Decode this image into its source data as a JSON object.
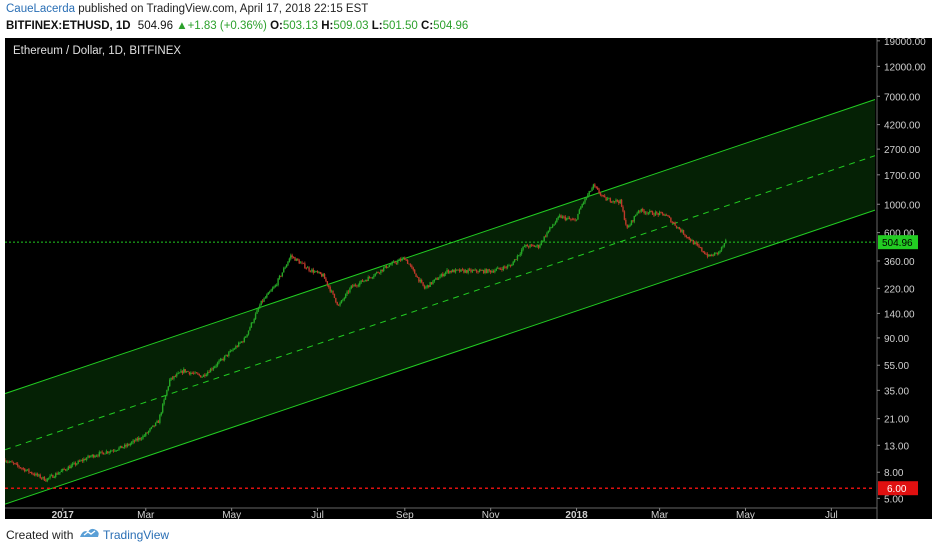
{
  "header": {
    "author": "CaueLacerda",
    "published": "published on TradingView.com, April 17, 2018 22:15 EST",
    "symbol": "BITFINEX:ETHUSD, 1D",
    "last": "504.96",
    "change": "+1.83 (+0.36%)",
    "open_label": "O:",
    "open": "503.13",
    "high_label": "H:",
    "high": "509.03",
    "low_label": "L:",
    "low": "501.50",
    "close_label": "C:",
    "close": "504.96"
  },
  "footer": {
    "created_with": "Created with",
    "brand": "TradingView"
  },
  "colors": {
    "background": "#000000",
    "channel": "#22cc22",
    "up": "#26a626",
    "down": "#c0392b",
    "price_line": "#22cc22",
    "support": "#e01010",
    "axis_text": "#d0d0d0"
  },
  "chart_data": {
    "type": "candlestick",
    "title": "Ethereum / Dollar, 1D, BITFINEX",
    "y_scale": "log",
    "ylim": [
      4.2,
      20000
    ],
    "y_ticks": [
      5.0,
      8.0,
      13.0,
      21.0,
      35.0,
      55.0,
      90.0,
      140.0,
      220.0,
      360.0,
      600.0,
      1000.0,
      1700.0,
      2700.0,
      4200.0,
      7000.0,
      12000.0,
      19000.0
    ],
    "x_ticks": [
      "2017",
      "Mar",
      "May",
      "Jul",
      "Sep",
      "Nov",
      "2018",
      "Mar",
      "May",
      "Jul"
    ],
    "x_range": [
      "2016-11-21",
      "2018-08-01"
    ],
    "last_price": {
      "value": 504.96,
      "label": "504.96"
    },
    "support_line": {
      "value": 6.0,
      "label": "6.00"
    },
    "channel": {
      "upper": [
        {
          "date": "2016-11-21",
          "value": 33
        },
        {
          "date": "2018-08-01",
          "value": 6600
        }
      ],
      "mid": [
        {
          "date": "2016-11-21",
          "value": 12
        },
        {
          "date": "2018-08-01",
          "value": 2400
        }
      ],
      "lower": [
        {
          "date": "2016-11-21",
          "value": 4.5
        },
        {
          "date": "2018-08-01",
          "value": 900
        }
      ]
    },
    "price_path": [
      {
        "date": "2016-11-21",
        "value": 10
      },
      {
        "date": "2016-12-05",
        "value": 8.4
      },
      {
        "date": "2016-12-20",
        "value": 7.0
      },
      {
        "date": "2017-01-03",
        "value": 8.5
      },
      {
        "date": "2017-01-20",
        "value": 10.6
      },
      {
        "date": "2017-02-15",
        "value": 12.8
      },
      {
        "date": "2017-02-28",
        "value": 15.5
      },
      {
        "date": "2017-03-10",
        "value": 20
      },
      {
        "date": "2017-03-18",
        "value": 42
      },
      {
        "date": "2017-03-28",
        "value": 50
      },
      {
        "date": "2017-04-10",
        "value": 45
      },
      {
        "date": "2017-04-25",
        "value": 62
      },
      {
        "date": "2017-05-10",
        "value": 88
      },
      {
        "date": "2017-05-22",
        "value": 170
      },
      {
        "date": "2017-06-01",
        "value": 230
      },
      {
        "date": "2017-06-12",
        "value": 395
      },
      {
        "date": "2017-06-25",
        "value": 310
      },
      {
        "date": "2017-07-05",
        "value": 275
      },
      {
        "date": "2017-07-16",
        "value": 160
      },
      {
        "date": "2017-07-25",
        "value": 225
      },
      {
        "date": "2017-08-05",
        "value": 260
      },
      {
        "date": "2017-08-20",
        "value": 330
      },
      {
        "date": "2017-09-01",
        "value": 380
      },
      {
        "date": "2017-09-15",
        "value": 220
      },
      {
        "date": "2017-10-01",
        "value": 300
      },
      {
        "date": "2017-10-20",
        "value": 300
      },
      {
        "date": "2017-11-01",
        "value": 300
      },
      {
        "date": "2017-11-15",
        "value": 330
      },
      {
        "date": "2017-11-25",
        "value": 470
      },
      {
        "date": "2017-12-05",
        "value": 470
      },
      {
        "date": "2017-12-12",
        "value": 620
      },
      {
        "date": "2017-12-20",
        "value": 800
      },
      {
        "date": "2017-12-31",
        "value": 740
      },
      {
        "date": "2018-01-05",
        "value": 1000
      },
      {
        "date": "2018-01-13",
        "value": 1390
      },
      {
        "date": "2018-01-21",
        "value": 1100
      },
      {
        "date": "2018-02-01",
        "value": 1050
      },
      {
        "date": "2018-02-06",
        "value": 640
      },
      {
        "date": "2018-02-14",
        "value": 900
      },
      {
        "date": "2018-02-24",
        "value": 850
      },
      {
        "date": "2018-03-05",
        "value": 830
      },
      {
        "date": "2018-03-15",
        "value": 640
      },
      {
        "date": "2018-03-25",
        "value": 500
      },
      {
        "date": "2018-04-05",
        "value": 390
      },
      {
        "date": "2018-04-12",
        "value": 420
      },
      {
        "date": "2018-04-17",
        "value": 505
      }
    ]
  }
}
